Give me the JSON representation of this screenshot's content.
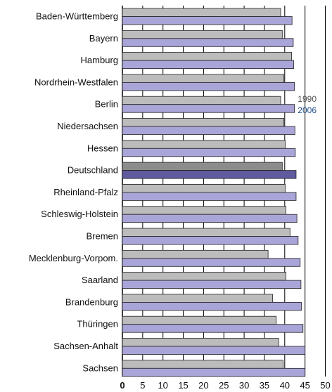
{
  "chart_data": {
    "type": "bar",
    "orientation": "horizontal",
    "categories": [
      "Baden-Württemberg",
      "Bayern",
      "Hamburg",
      "Nordrhein-Westfalen",
      "Berlin",
      "Niedersachsen",
      "Hessen",
      "Deutschland",
      "Rheinland-Pfalz",
      "Schleswig-Holstein",
      "Bremen",
      "Mecklenburg-Vorpom.",
      "Saarland",
      "Brandenburg",
      "Thüringen",
      "Sachsen-Anhalt",
      "Sachsen"
    ],
    "highlight_category": "Deutschland",
    "series": [
      {
        "name": "1990",
        "color": "#bcbcbc",
        "highlight_color": "#8c8c8c",
        "values": [
          39.0,
          39.4,
          41.7,
          39.8,
          39.0,
          39.8,
          40.1,
          39.4,
          40.1,
          40.3,
          41.3,
          35.9,
          40.3,
          37.0,
          37.9,
          38.5,
          39.6
        ]
      },
      {
        "name": "2006",
        "color": "#a9a5d8",
        "highlight_color": "#605a9e",
        "values": [
          41.8,
          42.1,
          42.2,
          42.4,
          42.4,
          42.5,
          42.6,
          42.8,
          42.8,
          43.0,
          43.3,
          43.8,
          44.0,
          44.1,
          44.5,
          45.0,
          45.0
        ]
      }
    ],
    "xlim": [
      0,
      50
    ],
    "xticks": [
      "0",
      "5",
      "10",
      "15",
      "20",
      "25",
      "30",
      "35",
      "40",
      "45",
      "50"
    ],
    "legend": {
      "labels": [
        "1990",
        "2006"
      ],
      "colors": [
        "#555555",
        "#1e4c8c"
      ],
      "position": "top-right"
    },
    "grid": true
  }
}
